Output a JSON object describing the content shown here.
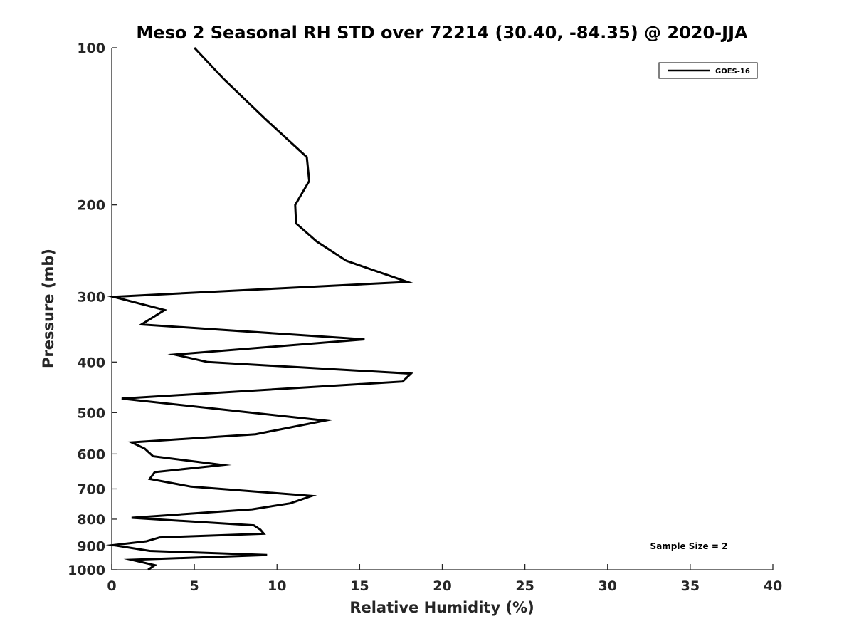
{
  "chart_data": {
    "type": "line",
    "title": "Meso 2 Seasonal RH STD over 72214 (30.40, -84.35) @ 2020-JJA",
    "xlabel": "Relative Humidity (%)",
    "ylabel": "Pressure (mb)",
    "xlim": [
      0,
      40
    ],
    "ylim": [
      100,
      1000
    ],
    "y_scale": "log",
    "y_reversed": true,
    "x_ticks": [
      "0",
      "5",
      "10",
      "15",
      "20",
      "25",
      "30",
      "35",
      "40"
    ],
    "y_ticks": [
      "100",
      "200",
      "300",
      "400",
      "500",
      "600",
      "700",
      "800",
      "900",
      "1000"
    ],
    "grid": false,
    "legend_position": "top-right",
    "annotation": "Sample Size = 2",
    "line_color": "#000000",
    "series": [
      {
        "name": "GOES-16",
        "x": [
          5.0,
          6.8,
          9.3,
          11.8,
          11.95,
          11.1,
          11.15,
          12.4,
          14.2,
          17.9,
          0.1,
          3.2,
          1.8,
          15.3,
          3.8,
          5.8,
          18.1,
          17.6,
          0.6,
          12.9,
          8.7,
          1.2,
          2.0,
          2.5,
          6.7,
          2.6,
          2.3,
          4.8,
          12.1,
          10.8,
          8.5,
          1.2,
          8.6,
          9.0,
          9.2,
          2.9,
          2.1,
          0.1,
          2.3,
          9.4,
          1.2,
          2.6,
          2.2
        ],
        "y": [
          100,
          115,
          137,
          162,
          180,
          200,
          217,
          235,
          256,
          281,
          300,
          318,
          339,
          362,
          387,
          400,
          421,
          436,
          470,
          518,
          550,
          570,
          586,
          606,
          630,
          650,
          670,
          693,
          722,
          746,
          766,
          795,
          822,
          838,
          853,
          867,
          882,
          897,
          920,
          937,
          957,
          980,
          1000
        ]
      }
    ]
  }
}
